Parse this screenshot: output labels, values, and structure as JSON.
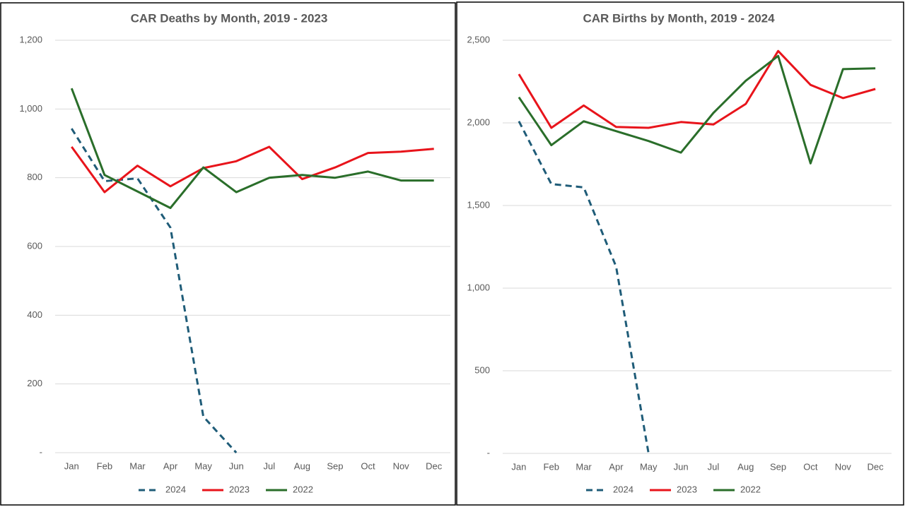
{
  "chart_data": [
    {
      "type": "line",
      "title": "CAR Deaths by Month,  2019 - 2023",
      "categories": [
        "Jan",
        "Feb",
        "Mar",
        "Apr",
        "May",
        "Jun",
        "Jul",
        "Aug",
        "Sep",
        "Oct",
        "Nov",
        "Dec"
      ],
      "series": [
        {
          "name": "2024",
          "color": "#1f5c78",
          "dashed": true,
          "values": [
            943,
            790,
            798,
            655,
            105,
            0,
            null,
            null,
            null,
            null,
            null,
            null
          ]
        },
        {
          "name": "2023",
          "color": "#e8141b",
          "dashed": false,
          "values": [
            890,
            758,
            835,
            775,
            828,
            848,
            890,
            796,
            830,
            872,
            876,
            884
          ]
        },
        {
          "name": "2022",
          "color": "#2a6e2a",
          "dashed": false,
          "values": [
            1060,
            808,
            760,
            712,
            830,
            758,
            800,
            808,
            800,
            818,
            792,
            792
          ]
        }
      ],
      "ylim": [
        0,
        1200
      ],
      "yticks": [
        {
          "value": 0,
          "label": "-"
        },
        200,
        400,
        600,
        800,
        {
          "value": 1000,
          "label": "1,000"
        },
        {
          "value": 1200,
          "label": "1,200"
        }
      ],
      "grid": true,
      "legend": "bottom"
    },
    {
      "type": "line",
      "title": "CAR Births by Month,  2019 - 2024",
      "categories": [
        "Jan",
        "Feb",
        "Mar",
        "Apr",
        "May",
        "Jun",
        "Jul",
        "Aug",
        "Sep",
        "Oct",
        "Nov",
        "Dec"
      ],
      "series": [
        {
          "name": "2024",
          "color": "#1f5c78",
          "dashed": true,
          "values": [
            2010,
            1630,
            1610,
            1130,
            0,
            null,
            null,
            null,
            null,
            null,
            null,
            null
          ]
        },
        {
          "name": "2023",
          "color": "#e8141b",
          "dashed": false,
          "values": [
            2295,
            1970,
            2105,
            1975,
            1970,
            2005,
            1990,
            2115,
            2435,
            2230,
            2150,
            2205
          ]
        },
        {
          "name": "2022",
          "color": "#2a6e2a",
          "dashed": false,
          "values": [
            2155,
            1865,
            2010,
            1950,
            1890,
            1820,
            2060,
            2255,
            2405,
            1755,
            2325,
            2330
          ]
        }
      ],
      "ylim": [
        0,
        2500
      ],
      "yticks": [
        {
          "value": 0,
          "label": "-"
        },
        500,
        {
          "value": 1000,
          "label": "1,000"
        },
        {
          "value": 1500,
          "label": "1,500"
        },
        {
          "value": 2000,
          "label": "2,000"
        },
        {
          "value": 2500,
          "label": "2,500"
        }
      ],
      "grid": true,
      "legend": "bottom"
    }
  ]
}
